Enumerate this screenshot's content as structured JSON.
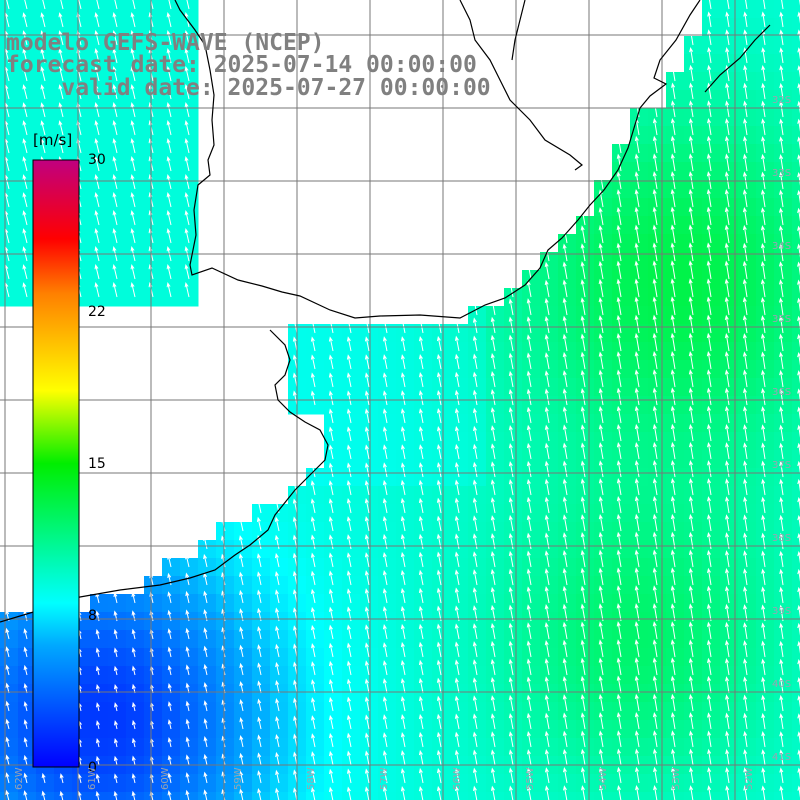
{
  "title": {
    "line1": "modelo GEFS-WAVE (NCEP)",
    "line2": "forecast date: 2025-07-14 00:00:00",
    "line3": "    valid date: 2025-07-27 00:00:00"
  },
  "colorbar": {
    "unit": "[m/s]",
    "ticks": [
      "30",
      "22",
      "15",
      "8",
      "0"
    ],
    "tick_values": [
      30,
      22,
      15,
      8,
      0
    ],
    "range": [
      0,
      30
    ],
    "colors": [
      "#0000ff",
      "#00aaff",
      "#00ffff",
      "#00ff00",
      "#ffff00",
      "#ff8000",
      "#ff0000",
      "#cc0066"
    ]
  },
  "map": {
    "variable": "wind speed and direction",
    "land_color": "#ffffff",
    "coastline_color": "#000000",
    "grid_color": "#777777",
    "arrow_color": "#ffffff",
    "lat_labels": [
      "32S",
      "33S",
      "34S",
      "35S",
      "36S",
      "37S",
      "38S",
      "39S",
      "40S",
      "41S"
    ],
    "lon_labels": [
      "62W",
      "61W",
      "60W",
      "59W",
      "58W",
      "57W",
      "56W",
      "55W",
      "54W",
      "53W",
      "52W"
    ]
  },
  "chart_data": {
    "type": "heatmap",
    "title": "modelo GEFS-WAVE (NCEP)",
    "value_unit": "m/s",
    "color_range": [
      0,
      30
    ],
    "regions": [
      {
        "area": "open ocean east, 34S-36S",
        "speed_approx": 12
      },
      {
        "area": "Rio de la Plata estuary",
        "speed_approx": 8
      },
      {
        "area": "southeast, 39S-40S 53W-55W",
        "speed_approx": 11
      },
      {
        "area": "southwest coast, 40S-41S 60W-62W",
        "speed_approx": 3
      }
    ]
  }
}
